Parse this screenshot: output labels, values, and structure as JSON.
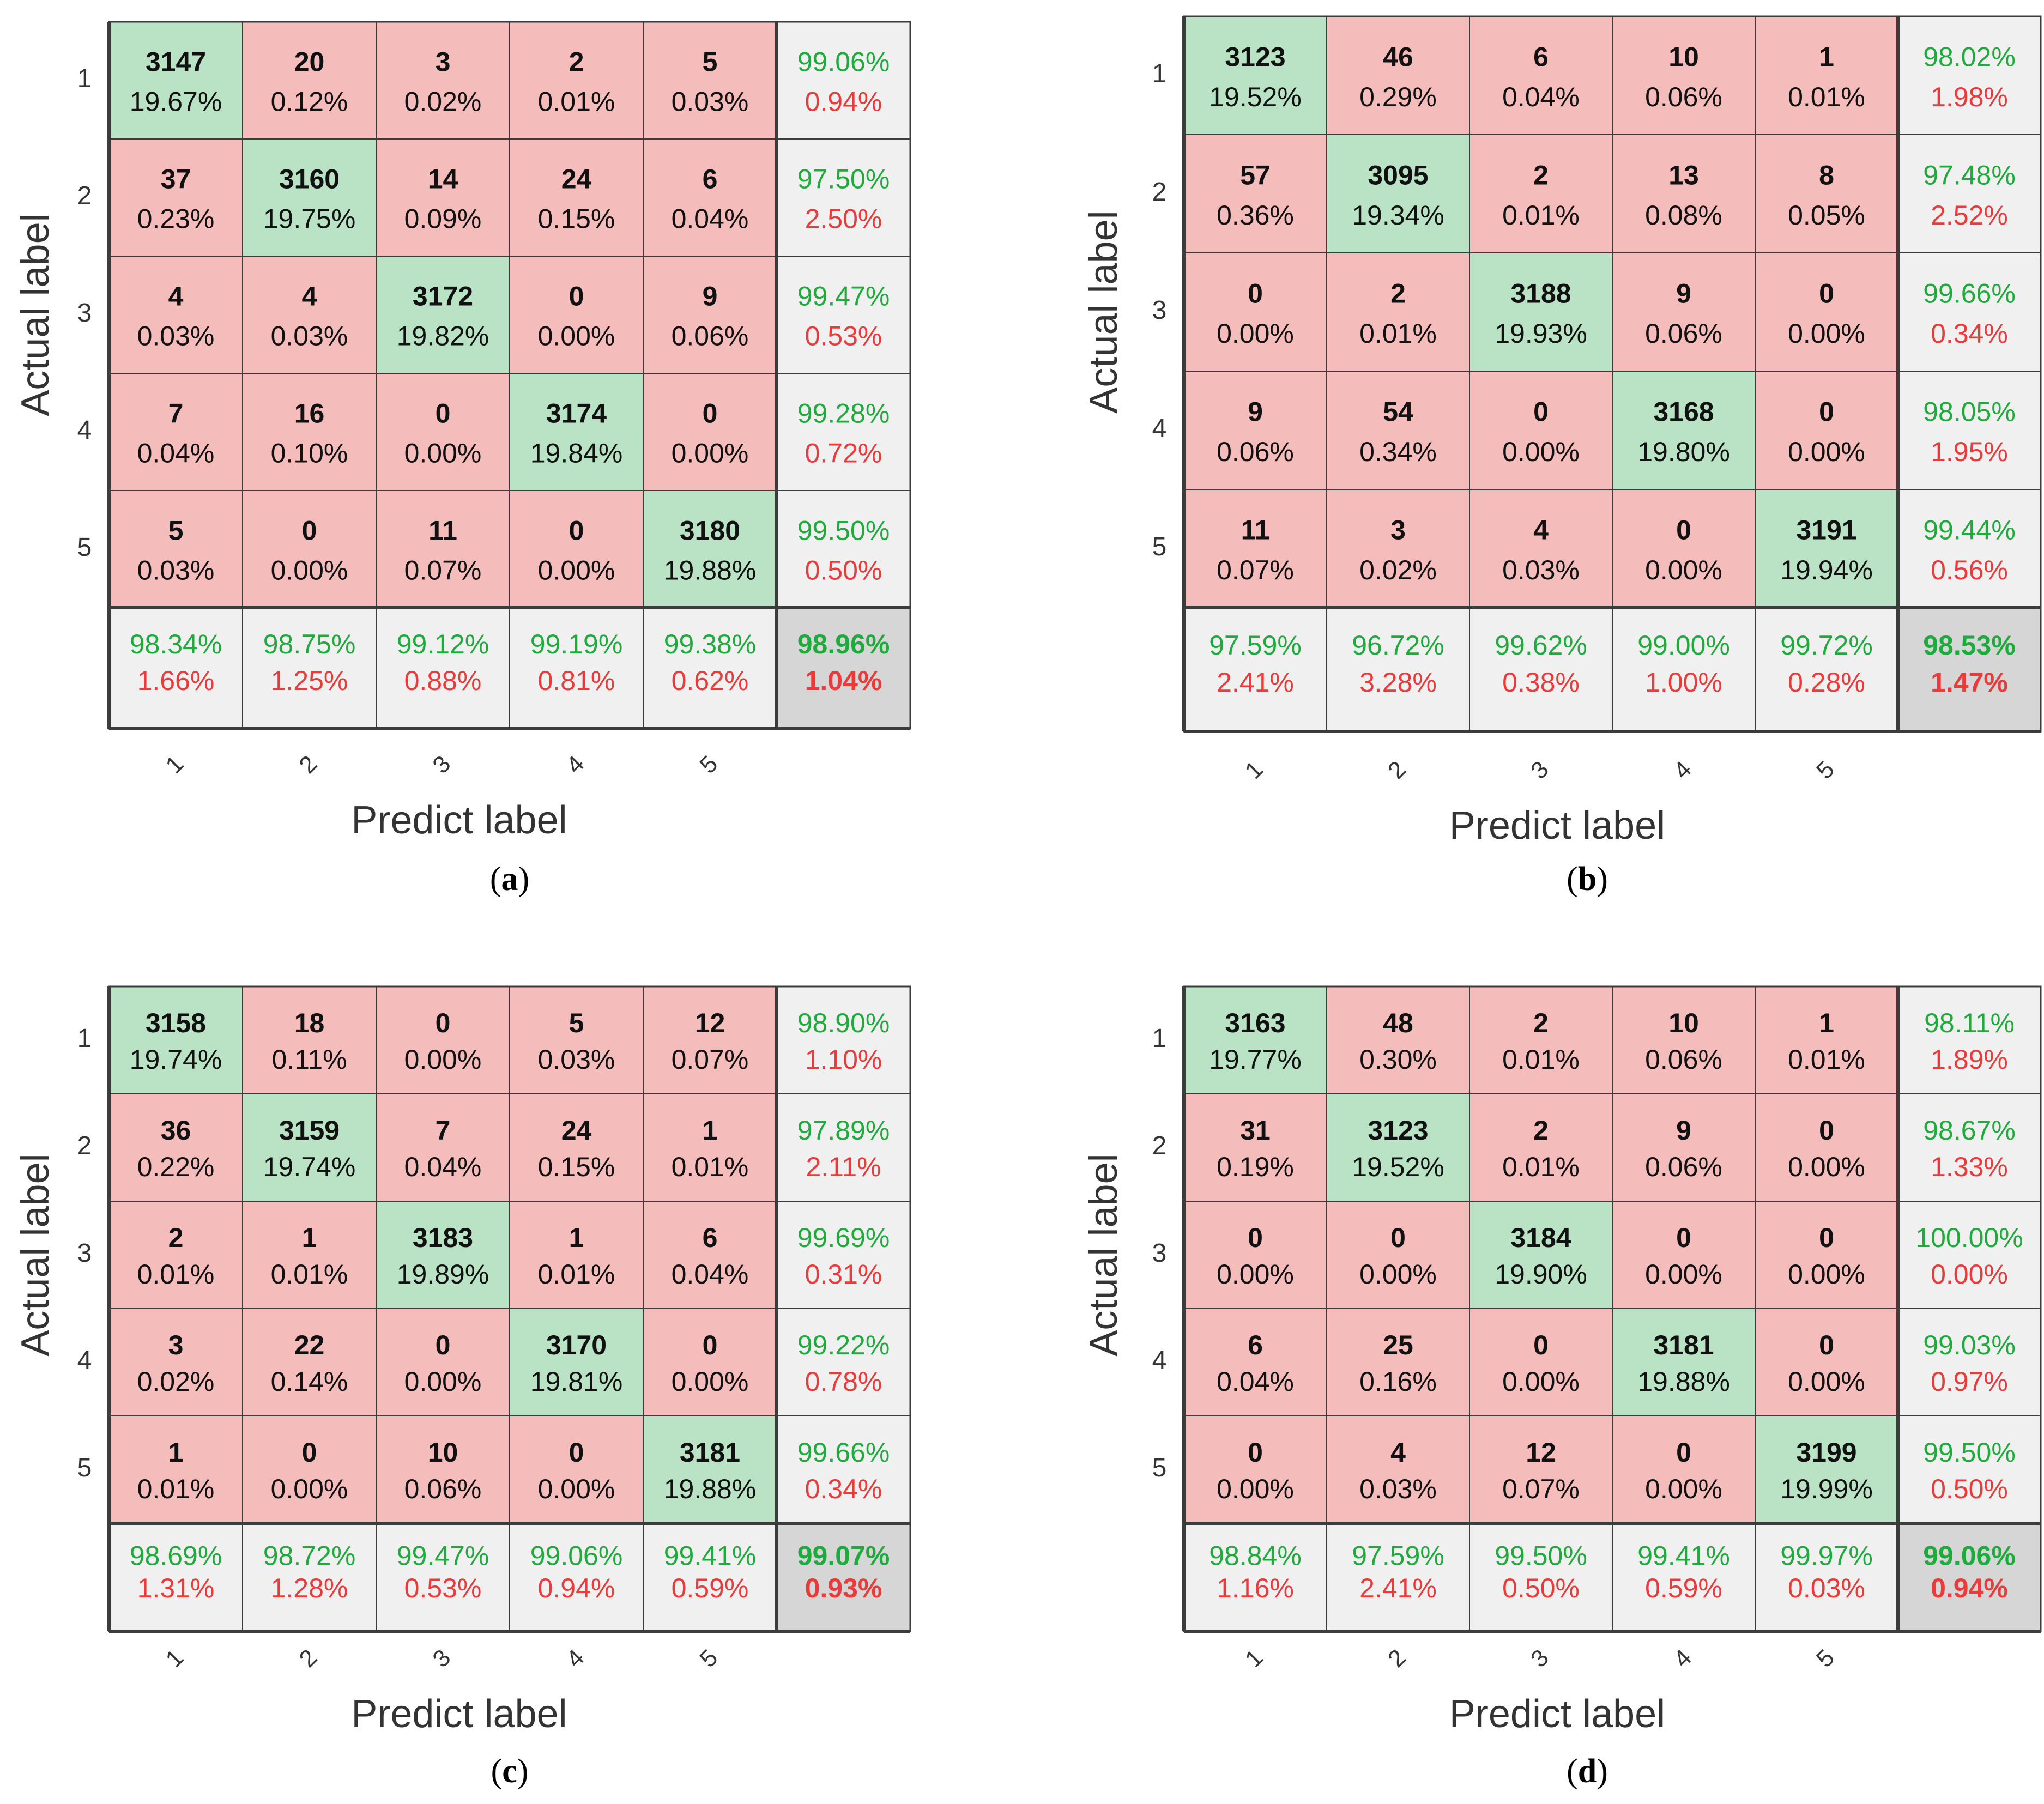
{
  "colors": {
    "diag_fill": "#b9e3c4",
    "off_fill": "#f5bcbc",
    "summary_fill": "#f0f0f0",
    "overall_fill": "#d6d6d6",
    "green_text": "#1faa3c",
    "red_text": "#ea3a3a",
    "black_text": "#111111",
    "grid_line": "#3c3c3c",
    "axis_text": "#333333"
  },
  "chart_data": [
    {
      "type": "heatmap",
      "subtype": "confusion-matrix",
      "caption": "a",
      "xlabel": "Predict label",
      "ylabel": "Actual label",
      "row_labels": [
        "1",
        "2",
        "3",
        "4",
        "5"
      ],
      "col_labels": [
        "1",
        "2",
        "3",
        "4",
        "5"
      ],
      "counts": [
        [
          3147,
          20,
          3,
          2,
          5
        ],
        [
          37,
          3160,
          14,
          24,
          6
        ],
        [
          4,
          4,
          3172,
          0,
          9
        ],
        [
          7,
          16,
          0,
          3174,
          0
        ],
        [
          5,
          0,
          11,
          0,
          3180
        ]
      ],
      "percents": [
        [
          "19.67%",
          "0.12%",
          "0.02%",
          "0.01%",
          "0.03%"
        ],
        [
          "0.23%",
          "19.75%",
          "0.09%",
          "0.15%",
          "0.04%"
        ],
        [
          "0.03%",
          "0.03%",
          "19.82%",
          "0.00%",
          "0.06%"
        ],
        [
          "0.04%",
          "0.10%",
          "0.00%",
          "19.84%",
          "0.00%"
        ],
        [
          "0.03%",
          "0.00%",
          "0.07%",
          "0.00%",
          "19.88%"
        ]
      ],
      "row_summary": [
        [
          "99.06%",
          "0.94%"
        ],
        [
          "97.50%",
          "2.50%"
        ],
        [
          "99.47%",
          "0.53%"
        ],
        [
          "99.28%",
          "0.72%"
        ],
        [
          "99.50%",
          "0.50%"
        ]
      ],
      "col_summary": [
        [
          "98.34%",
          "1.66%"
        ],
        [
          "98.75%",
          "1.25%"
        ],
        [
          "99.12%",
          "0.88%"
        ],
        [
          "99.19%",
          "0.81%"
        ],
        [
          "99.38%",
          "0.62%"
        ]
      ],
      "overall": [
        "98.96%",
        "1.04%"
      ]
    },
    {
      "type": "heatmap",
      "subtype": "confusion-matrix",
      "caption": "b",
      "xlabel": "Predict label",
      "ylabel": "Actual label",
      "row_labels": [
        "1",
        "2",
        "3",
        "4",
        "5"
      ],
      "col_labels": [
        "1",
        "2",
        "3",
        "4",
        "5"
      ],
      "counts": [
        [
          3123,
          46,
          6,
          10,
          1
        ],
        [
          57,
          3095,
          2,
          13,
          8
        ],
        [
          0,
          2,
          3188,
          9,
          0
        ],
        [
          9,
          54,
          0,
          3168,
          0
        ],
        [
          11,
          3,
          4,
          0,
          3191
        ]
      ],
      "percents": [
        [
          "19.52%",
          "0.29%",
          "0.04%",
          "0.06%",
          "0.01%"
        ],
        [
          "0.36%",
          "19.34%",
          "0.01%",
          "0.08%",
          "0.05%"
        ],
        [
          "0.00%",
          "0.01%",
          "19.93%",
          "0.06%",
          "0.00%"
        ],
        [
          "0.06%",
          "0.34%",
          "0.00%",
          "19.80%",
          "0.00%"
        ],
        [
          "0.07%",
          "0.02%",
          "0.03%",
          "0.00%",
          "19.94%"
        ]
      ],
      "row_summary": [
        [
          "98.02%",
          "1.98%"
        ],
        [
          "97.48%",
          "2.52%"
        ],
        [
          "99.66%",
          "0.34%"
        ],
        [
          "98.05%",
          "1.95%"
        ],
        [
          "99.44%",
          "0.56%"
        ]
      ],
      "col_summary": [
        [
          "97.59%",
          "2.41%"
        ],
        [
          "96.72%",
          "3.28%"
        ],
        [
          "99.62%",
          "0.38%"
        ],
        [
          "99.00%",
          "1.00%"
        ],
        [
          "99.72%",
          "0.28%"
        ]
      ],
      "overall": [
        "98.53%",
        "1.47%"
      ]
    },
    {
      "type": "heatmap",
      "subtype": "confusion-matrix",
      "caption": "c",
      "xlabel": "Predict label",
      "ylabel": "Actual label",
      "row_labels": [
        "1",
        "2",
        "3",
        "4",
        "5"
      ],
      "col_labels": [
        "1",
        "2",
        "3",
        "4",
        "5"
      ],
      "counts": [
        [
          3158,
          18,
          0,
          5,
          12
        ],
        [
          36,
          3159,
          7,
          24,
          1
        ],
        [
          2,
          1,
          3183,
          1,
          6
        ],
        [
          3,
          22,
          0,
          3170,
          0
        ],
        [
          1,
          0,
          10,
          0,
          3181
        ]
      ],
      "percents": [
        [
          "19.74%",
          "0.11%",
          "0.00%",
          "0.03%",
          "0.07%"
        ],
        [
          "0.22%",
          "19.74%",
          "0.04%",
          "0.15%",
          "0.01%"
        ],
        [
          "0.01%",
          "0.01%",
          "19.89%",
          "0.01%",
          "0.04%"
        ],
        [
          "0.02%",
          "0.14%",
          "0.00%",
          "19.81%",
          "0.00%"
        ],
        [
          "0.01%",
          "0.00%",
          "0.06%",
          "0.00%",
          "19.88%"
        ]
      ],
      "row_summary": [
        [
          "98.90%",
          "1.10%"
        ],
        [
          "97.89%",
          "2.11%"
        ],
        [
          "99.69%",
          "0.31%"
        ],
        [
          "99.22%",
          "0.78%"
        ],
        [
          "99.66%",
          "0.34%"
        ]
      ],
      "col_summary": [
        [
          "98.69%",
          "1.31%"
        ],
        [
          "98.72%",
          "1.28%"
        ],
        [
          "99.47%",
          "0.53%"
        ],
        [
          "99.06%",
          "0.94%"
        ],
        [
          "99.41%",
          "0.59%"
        ]
      ],
      "overall": [
        "99.07%",
        "0.93%"
      ]
    },
    {
      "type": "heatmap",
      "subtype": "confusion-matrix",
      "caption": "d",
      "xlabel": "Predict label",
      "ylabel": "Actual label",
      "row_labels": [
        "1",
        "2",
        "3",
        "4",
        "5"
      ],
      "col_labels": [
        "1",
        "2",
        "3",
        "4",
        "5"
      ],
      "counts": [
        [
          3163,
          48,
          2,
          10,
          1
        ],
        [
          31,
          3123,
          2,
          9,
          0
        ],
        [
          0,
          0,
          3184,
          0,
          0
        ],
        [
          6,
          25,
          0,
          3181,
          0
        ],
        [
          0,
          4,
          12,
          0,
          3199
        ]
      ],
      "percents": [
        [
          "19.77%",
          "0.30%",
          "0.01%",
          "0.06%",
          "0.01%"
        ],
        [
          "0.19%",
          "19.52%",
          "0.01%",
          "0.06%",
          "0.00%"
        ],
        [
          "0.00%",
          "0.00%",
          "19.90%",
          "0.00%",
          "0.00%"
        ],
        [
          "0.04%",
          "0.16%",
          "0.00%",
          "19.88%",
          "0.00%"
        ],
        [
          "0.00%",
          "0.03%",
          "0.07%",
          "0.00%",
          "19.99%"
        ]
      ],
      "row_summary": [
        [
          "98.11%",
          "1.89%"
        ],
        [
          "98.67%",
          "1.33%"
        ],
        [
          "100.00%",
          "0.00%"
        ],
        [
          "99.03%",
          "0.97%"
        ],
        [
          "99.50%",
          "0.50%"
        ]
      ],
      "col_summary": [
        [
          "98.84%",
          "1.16%"
        ],
        [
          "97.59%",
          "2.41%"
        ],
        [
          "99.50%",
          "0.50%"
        ],
        [
          "99.41%",
          "0.59%"
        ],
        [
          "99.97%",
          "0.03%"
        ]
      ],
      "overall": [
        "99.06%",
        "0.94%"
      ]
    }
  ]
}
